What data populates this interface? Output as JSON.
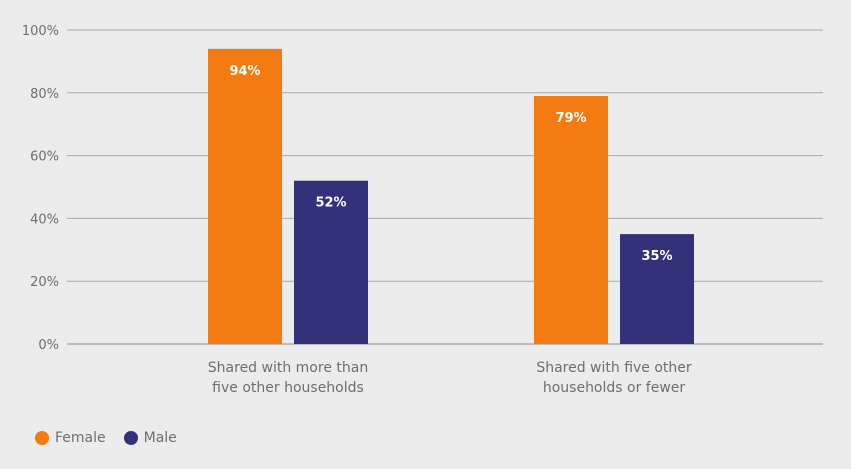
{
  "chart_data": {
    "type": "bar",
    "title": "",
    "xlabel": "",
    "ylabel": "",
    "ylim": [
      0,
      100
    ],
    "y_ticks": [
      "0%",
      "20%",
      "40%",
      "60%",
      "80%",
      "100%"
    ],
    "y_tick_values": [
      0,
      20,
      40,
      60,
      80,
      100
    ],
    "categories": [
      [
        "Shared with more than",
        "five other households"
      ],
      [
        "Shared with five other",
        "households or fewer"
      ]
    ],
    "series": [
      {
        "name": "Female",
        "color": "#f47b12",
        "values": [
          94,
          79
        ],
        "labels": [
          "94%",
          "79%"
        ]
      },
      {
        "name": "Male",
        "color": "#32317a",
        "values": [
          52,
          35
        ],
        "labels": [
          "52%",
          "35%"
        ]
      }
    ],
    "grid": true,
    "legend_position": "bottom-left"
  },
  "legend": {
    "items": [
      {
        "label": "Female",
        "color": "#f47b12"
      },
      {
        "label": "Male",
        "color": "#32317a"
      }
    ]
  }
}
